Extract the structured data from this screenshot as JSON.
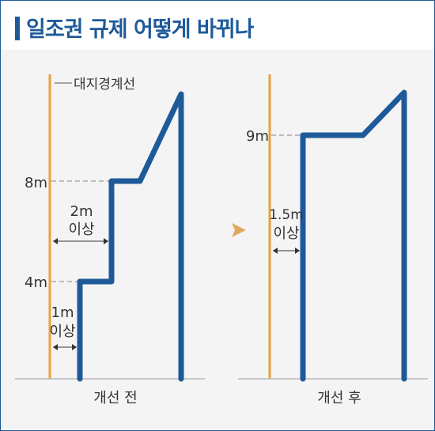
{
  "title": "일조권 규제 어떻게 바뀌나",
  "boundary_label": "대지경계선",
  "before": {
    "caption": "개선 전",
    "height_labels": [
      "4m",
      "8m"
    ],
    "setback_upper": [
      "2m",
      "이상"
    ],
    "setback_lower": [
      "1m",
      "이상"
    ]
  },
  "after": {
    "caption": "개선 후",
    "height_label": "9m",
    "setback": [
      "1.5m",
      "이상"
    ]
  },
  "colors": {
    "building": "#1e5a9a",
    "boundary": "#e8a040",
    "arrow": "#e0a860",
    "title": "#1e5a9a"
  }
}
